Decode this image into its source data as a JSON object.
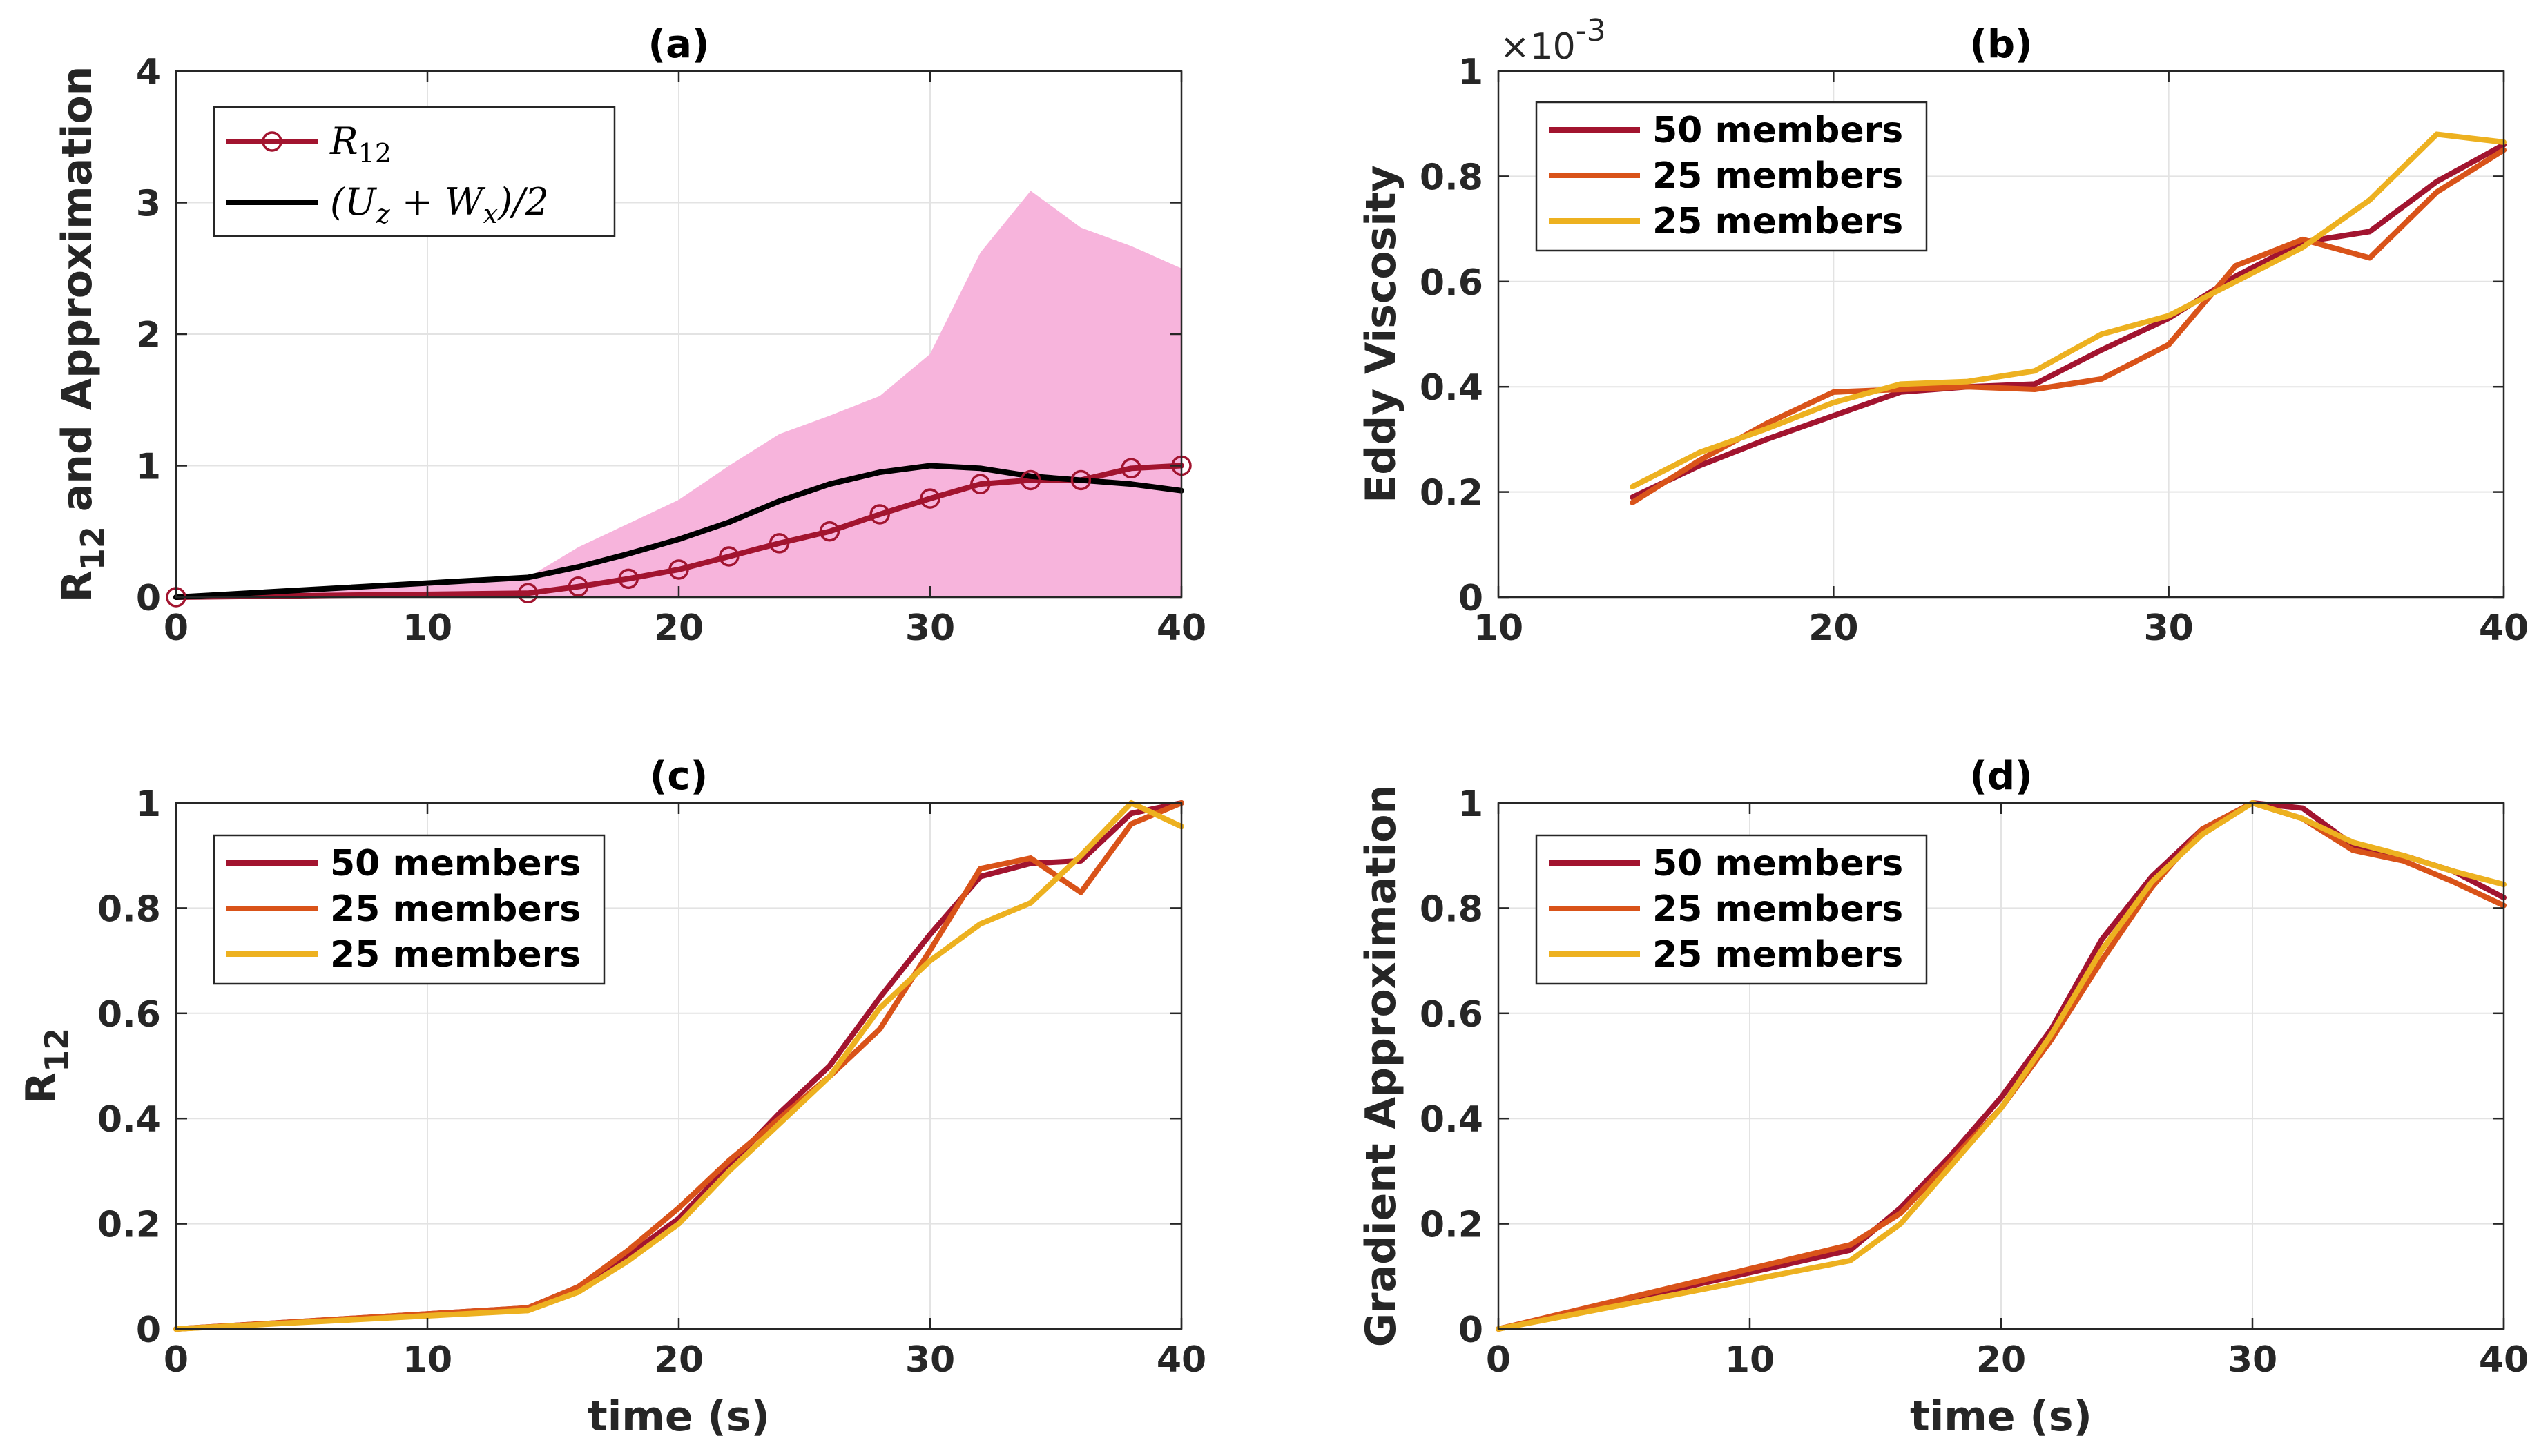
{
  "chart_data": [
    {
      "id": "a",
      "type": "line",
      "title": "(a)",
      "xlabel": "",
      "ylabel": "R_12 and Approximation",
      "ylabel_main": "R",
      "ylabel_sub": "12",
      "ylabel_rest": " and Approximation",
      "xlim": [
        0,
        40
      ],
      "ylim": [
        0,
        4
      ],
      "xticks": [
        0,
        10,
        20,
        30,
        40
      ],
      "yticks": [
        0,
        1,
        2,
        3,
        4
      ],
      "xtick_labels": [
        "0",
        "10",
        "20",
        "30",
        "40"
      ],
      "ytick_labels": [
        "0",
        "1",
        "2",
        "3",
        "4"
      ],
      "legend": [
        {
          "label": "R",
          "label_sub": "12",
          "color": "#a2142f",
          "marker": "circle"
        },
        {
          "label": "(U",
          "label_sub": "z",
          "label_mid": " + W",
          "label_sub2": "x",
          "label_end": ")/2",
          "color": "#000000",
          "marker": "none"
        }
      ],
      "band": {
        "color": "#f7b4dc",
        "x": [
          0,
          14,
          16,
          18,
          20,
          22,
          24,
          26,
          28,
          30,
          32,
          34,
          36,
          38,
          40
        ],
        "upper": [
          0,
          0.15,
          0.38,
          0.56,
          0.74,
          1.0,
          1.24,
          1.38,
          1.53,
          1.85,
          2.62,
          3.09,
          2.81,
          2.67,
          2.5
        ],
        "lower": [
          0,
          0,
          0,
          0,
          0,
          0,
          0,
          0,
          0,
          0,
          0,
          0,
          0,
          0,
          0
        ]
      },
      "series": [
        {
          "name": "R_12",
          "color": "#a2142f",
          "x": [
            0,
            14,
            16,
            18,
            20,
            22,
            24,
            26,
            28,
            30,
            32,
            34,
            36,
            38,
            40
          ],
          "y": [
            0,
            0.03,
            0.08,
            0.14,
            0.21,
            0.31,
            0.41,
            0.5,
            0.63,
            0.75,
            0.86,
            0.89,
            0.89,
            0.98,
            1.0
          ]
        },
        {
          "name": "(U_z + W_x)/2",
          "color": "#000000",
          "x": [
            0,
            14,
            16,
            18,
            20,
            22,
            24,
            26,
            28,
            30,
            32,
            34,
            36,
            38,
            40
          ],
          "y": [
            0,
            0.15,
            0.23,
            0.33,
            0.44,
            0.57,
            0.73,
            0.86,
            0.95,
            1.0,
            0.98,
            0.92,
            0.89,
            0.86,
            0.81
          ]
        }
      ]
    },
    {
      "id": "b",
      "type": "line",
      "title": "(b)",
      "xlabel": "",
      "ylabel": "Eddy Viscosity",
      "exponent": "×10",
      "exponent_sup": "-3",
      "xlim": [
        10,
        40
      ],
      "ylim": [
        0,
        1
      ],
      "xticks": [
        10,
        20,
        30,
        40
      ],
      "yticks": [
        0,
        0.2,
        0.4,
        0.6,
        0.8,
        1
      ],
      "xtick_labels": [
        "10",
        "20",
        "30",
        "40"
      ],
      "ytick_labels": [
        "0",
        "0.2",
        "0.4",
        "0.6",
        "0.8",
        "1"
      ],
      "legend": [
        {
          "label": "50 members",
          "color": "#a2142f"
        },
        {
          "label": "25 members",
          "color": "#d95319"
        },
        {
          "label": "25 members",
          "color": "#edb120"
        }
      ],
      "series": [
        {
          "name": "50 members",
          "color": "#a2142f",
          "x": [
            14,
            16,
            18,
            20,
            22,
            24,
            26,
            28,
            30,
            32,
            34,
            36,
            38,
            40
          ],
          "y": [
            0.19,
            0.25,
            0.3,
            0.345,
            0.39,
            0.4,
            0.405,
            0.47,
            0.53,
            0.61,
            0.675,
            0.695,
            0.79,
            0.86
          ]
        },
        {
          "name": "25 members",
          "color": "#d95319",
          "x": [
            14,
            16,
            18,
            20,
            22,
            24,
            26,
            28,
            30,
            32,
            34,
            36,
            38,
            40
          ],
          "y": [
            0.18,
            0.26,
            0.33,
            0.39,
            0.395,
            0.4,
            0.395,
            0.415,
            0.48,
            0.63,
            0.68,
            0.645,
            0.77,
            0.85
          ]
        },
        {
          "name": "25 members",
          "color": "#edb120",
          "x": [
            14,
            16,
            18,
            20,
            22,
            24,
            26,
            28,
            30,
            32,
            34,
            36,
            38,
            40
          ],
          "y": [
            0.21,
            0.275,
            0.32,
            0.37,
            0.405,
            0.41,
            0.43,
            0.5,
            0.535,
            0.6,
            0.665,
            0.755,
            0.88,
            0.865
          ]
        }
      ]
    },
    {
      "id": "c",
      "type": "line",
      "title": "(c)",
      "xlabel": "time (s)",
      "ylabel": "R_12",
      "ylabel_main": "R",
      "ylabel_sub": "12",
      "xlim": [
        0,
        40
      ],
      "ylim": [
        0,
        1
      ],
      "xticks": [
        0,
        10,
        20,
        30,
        40
      ],
      "yticks": [
        0,
        0.2,
        0.4,
        0.6,
        0.8,
        1
      ],
      "xtick_labels": [
        "0",
        "10",
        "20",
        "30",
        "40"
      ],
      "ytick_labels": [
        "0",
        "0.2",
        "0.4",
        "0.6",
        "0.8",
        "1"
      ],
      "legend": [
        {
          "label": "50 members",
          "color": "#a2142f"
        },
        {
          "label": "25 members",
          "color": "#d95319"
        },
        {
          "label": "25 members",
          "color": "#edb120"
        }
      ],
      "series": [
        {
          "name": "50 members",
          "color": "#a2142f",
          "x": [
            0,
            14,
            16,
            18,
            20,
            22,
            24,
            26,
            28,
            30,
            32,
            34,
            36,
            38,
            40
          ],
          "y": [
            0,
            0.04,
            0.08,
            0.14,
            0.21,
            0.31,
            0.41,
            0.5,
            0.63,
            0.75,
            0.86,
            0.885,
            0.89,
            0.98,
            1.0
          ]
        },
        {
          "name": "25 members",
          "color": "#d95319",
          "x": [
            0,
            14,
            16,
            18,
            20,
            22,
            24,
            26,
            28,
            30,
            32,
            34,
            36,
            38,
            40
          ],
          "y": [
            0,
            0.04,
            0.08,
            0.15,
            0.23,
            0.32,
            0.4,
            0.48,
            0.57,
            0.72,
            0.875,
            0.895,
            0.83,
            0.96,
            1.0
          ]
        },
        {
          "name": "25 members",
          "color": "#edb120",
          "x": [
            0,
            14,
            16,
            18,
            20,
            22,
            24,
            26,
            28,
            30,
            32,
            34,
            36,
            38,
            40
          ],
          "y": [
            0,
            0.035,
            0.07,
            0.13,
            0.2,
            0.3,
            0.39,
            0.48,
            0.61,
            0.7,
            0.77,
            0.81,
            0.9,
            1.0,
            0.955
          ]
        }
      ]
    },
    {
      "id": "d",
      "type": "line",
      "title": "(d)",
      "xlabel": "time (s)",
      "ylabel": "Gradient Approximation",
      "xlim": [
        0,
        40
      ],
      "ylim": [
        0,
        1
      ],
      "xticks": [
        0,
        10,
        20,
        30,
        40
      ],
      "yticks": [
        0,
        0.2,
        0.4,
        0.6,
        0.8,
        1
      ],
      "xtick_labels": [
        "0",
        "10",
        "20",
        "30",
        "40"
      ],
      "ytick_labels": [
        "0",
        "0.2",
        "0.4",
        "0.6",
        "0.8",
        "1"
      ],
      "legend": [
        {
          "label": "50 members",
          "color": "#a2142f"
        },
        {
          "label": "25 members",
          "color": "#d95319"
        },
        {
          "label": "25 members",
          "color": "#edb120"
        }
      ],
      "series": [
        {
          "name": "50 members",
          "color": "#a2142f",
          "x": [
            0,
            14,
            16,
            18,
            20,
            22,
            24,
            26,
            28,
            30,
            32,
            34,
            36,
            38,
            40
          ],
          "y": [
            0,
            0.15,
            0.23,
            0.33,
            0.44,
            0.57,
            0.74,
            0.86,
            0.95,
            1.0,
            0.99,
            0.92,
            0.9,
            0.87,
            0.82
          ]
        },
        {
          "name": "25 members",
          "color": "#d95319",
          "x": [
            0,
            14,
            16,
            18,
            20,
            22,
            24,
            26,
            28,
            30,
            32,
            34,
            36,
            38,
            40
          ],
          "y": [
            0,
            0.16,
            0.22,
            0.32,
            0.42,
            0.55,
            0.7,
            0.84,
            0.95,
            1.0,
            0.97,
            0.91,
            0.89,
            0.85,
            0.805
          ]
        },
        {
          "name": "25 members",
          "color": "#edb120",
          "x": [
            0,
            14,
            16,
            18,
            20,
            22,
            24,
            26,
            28,
            30,
            32,
            34,
            36,
            38,
            40
          ],
          "y": [
            0,
            0.13,
            0.2,
            0.31,
            0.42,
            0.56,
            0.72,
            0.85,
            0.94,
            1.0,
            0.97,
            0.925,
            0.9,
            0.87,
            0.845
          ]
        }
      ]
    }
  ]
}
